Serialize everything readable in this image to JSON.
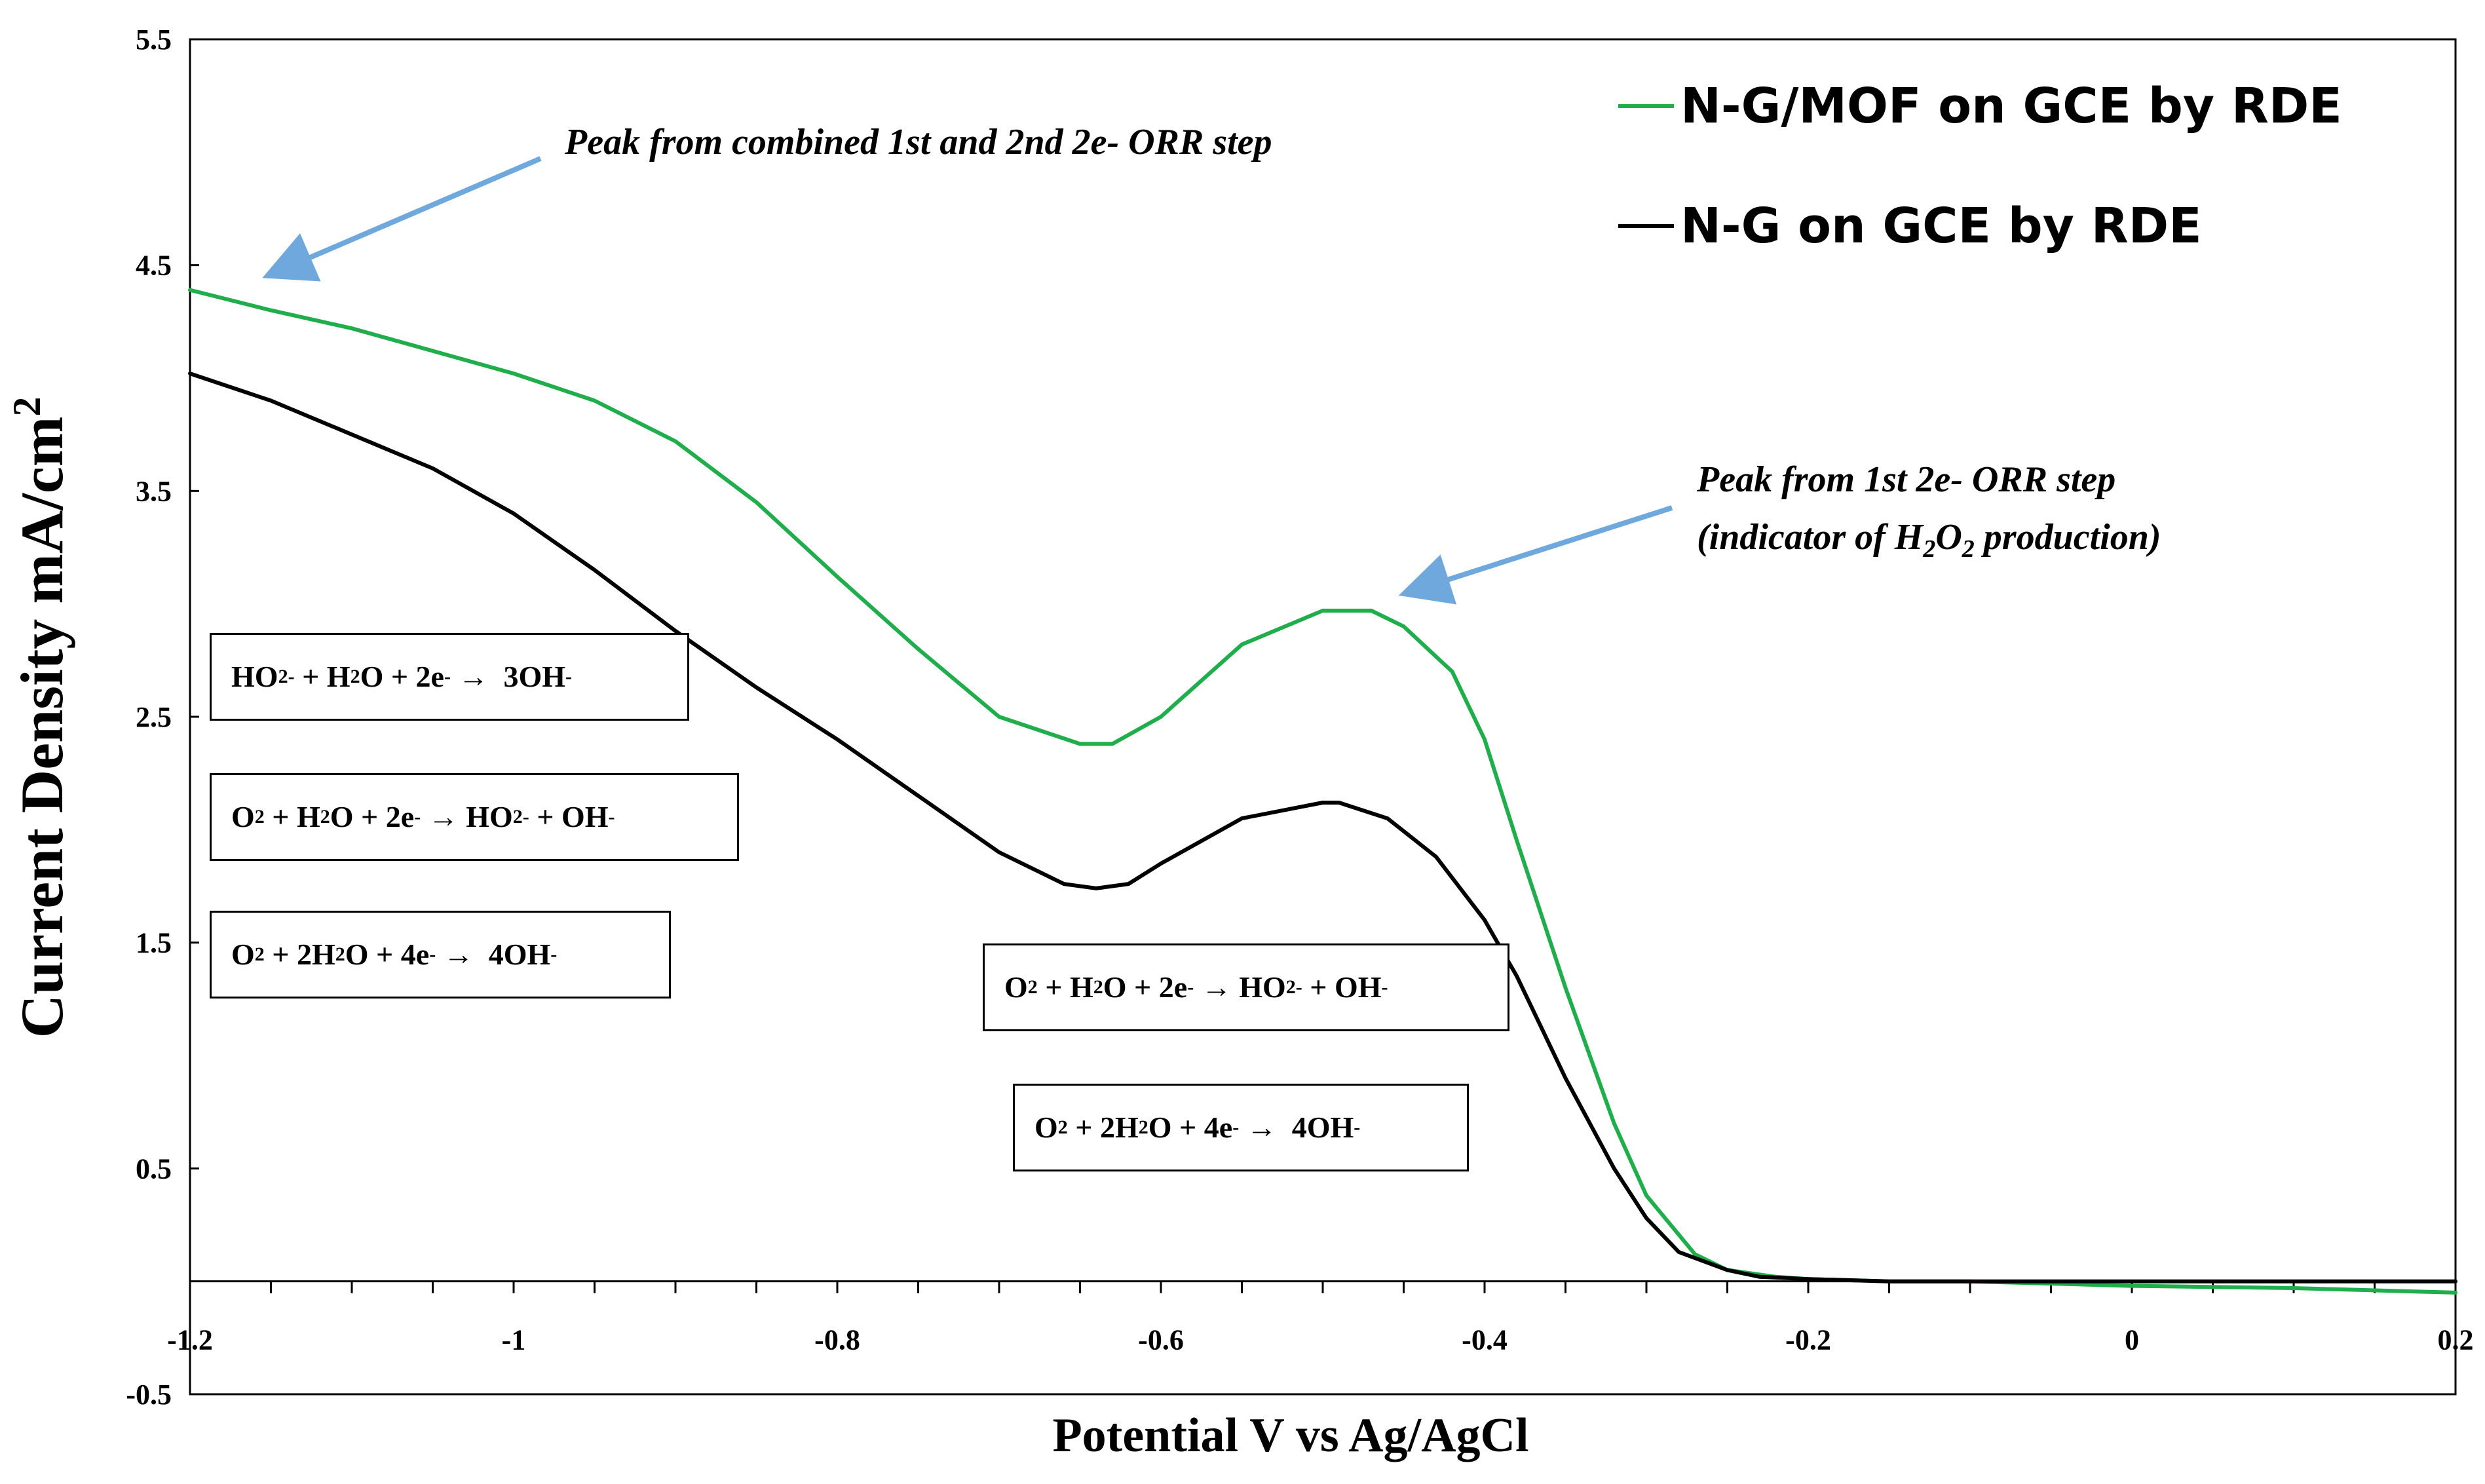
{
  "chart_data": {
    "type": "line",
    "xlabel": "Potential V vs Ag/AgCl",
    "ylabel": "Current Density mA/cm",
    "ylabel_sup": "2",
    "xlim": [
      -1.2,
      0.2
    ],
    "ylim": [
      -0.5,
      5.5
    ],
    "x_axis_crosses_y": 0,
    "x_ticks": [
      -1.2,
      -1,
      -0.8,
      -0.6,
      -0.4,
      -0.2,
      0,
      0.2
    ],
    "x_tick_labels": [
      "-1.2",
      "-1",
      "-0.8",
      "-0.6",
      "-0.4",
      "-0.2",
      "0",
      "0.2"
    ],
    "x_minor_step": 0.05,
    "y_ticks": [
      -0.5,
      0.5,
      1.5,
      2.5,
      3.5,
      4.5,
      5.5
    ],
    "y_tick_labels": [
      "-0.5",
      "0.5",
      "1.5",
      "2.5",
      "3.5",
      "4.5",
      "5.5"
    ],
    "grid": false,
    "legend_position": "top-right",
    "series": [
      {
        "name": "N-G/MOF on GCE by RDE",
        "color": "#1fae4b",
        "x": [
          -1.2,
          -1.15,
          -1.1,
          -1.05,
          -1.0,
          -0.95,
          -0.9,
          -0.85,
          -0.8,
          -0.75,
          -0.7,
          -0.65,
          -0.63,
          -0.6,
          -0.55,
          -0.5,
          -0.47,
          -0.45,
          -0.42,
          -0.4,
          -0.38,
          -0.35,
          -0.32,
          -0.3,
          -0.27,
          -0.25,
          -0.22,
          -0.2,
          -0.15,
          -0.1,
          0,
          0.1,
          0.2
        ],
        "values": [
          4.39,
          4.3,
          4.22,
          4.12,
          4.02,
          3.9,
          3.72,
          3.45,
          3.12,
          2.8,
          2.5,
          2.38,
          2.38,
          2.5,
          2.82,
          2.97,
          2.97,
          2.9,
          2.7,
          2.4,
          1.95,
          1.3,
          0.7,
          0.38,
          0.12,
          0.05,
          0.02,
          0.01,
          0.0,
          0.0,
          -0.02,
          -0.03,
          -0.05
        ]
      },
      {
        "name": "N-G on GCE by RDE",
        "color": "#000000",
        "x": [
          -1.2,
          -1.15,
          -1.1,
          -1.05,
          -1.0,
          -0.95,
          -0.9,
          -0.85,
          -0.8,
          -0.75,
          -0.7,
          -0.66,
          -0.64,
          -0.62,
          -0.6,
          -0.55,
          -0.5,
          -0.49,
          -0.46,
          -0.43,
          -0.4,
          -0.38,
          -0.35,
          -0.32,
          -0.3,
          -0.28,
          -0.25,
          -0.23,
          -0.2,
          -0.15,
          -0.1,
          0,
          0.1,
          0.2
        ],
        "values": [
          4.02,
          3.9,
          3.75,
          3.6,
          3.4,
          3.15,
          2.88,
          2.63,
          2.4,
          2.15,
          1.9,
          1.76,
          1.74,
          1.76,
          1.85,
          2.05,
          2.12,
          2.12,
          2.05,
          1.88,
          1.6,
          1.35,
          0.9,
          0.5,
          0.28,
          0.13,
          0.05,
          0.02,
          0.01,
          0.0,
          0.0,
          0.0,
          0.0,
          0.0
        ]
      }
    ],
    "annotations": [
      {
        "id": "anno1",
        "text": "Peak from combined 1st and 2nd 2e- ORR step"
      },
      {
        "id": "anno2",
        "line1": "Peak from 1st 2e- ORR step",
        "line2_pre": "(indicator of H",
        "line2_sub1": "2",
        "line2_mid": "O",
        "line2_sub2": "2",
        "line2_post": " production)"
      }
    ],
    "arrow_color": "#6fa8dc"
  }
}
